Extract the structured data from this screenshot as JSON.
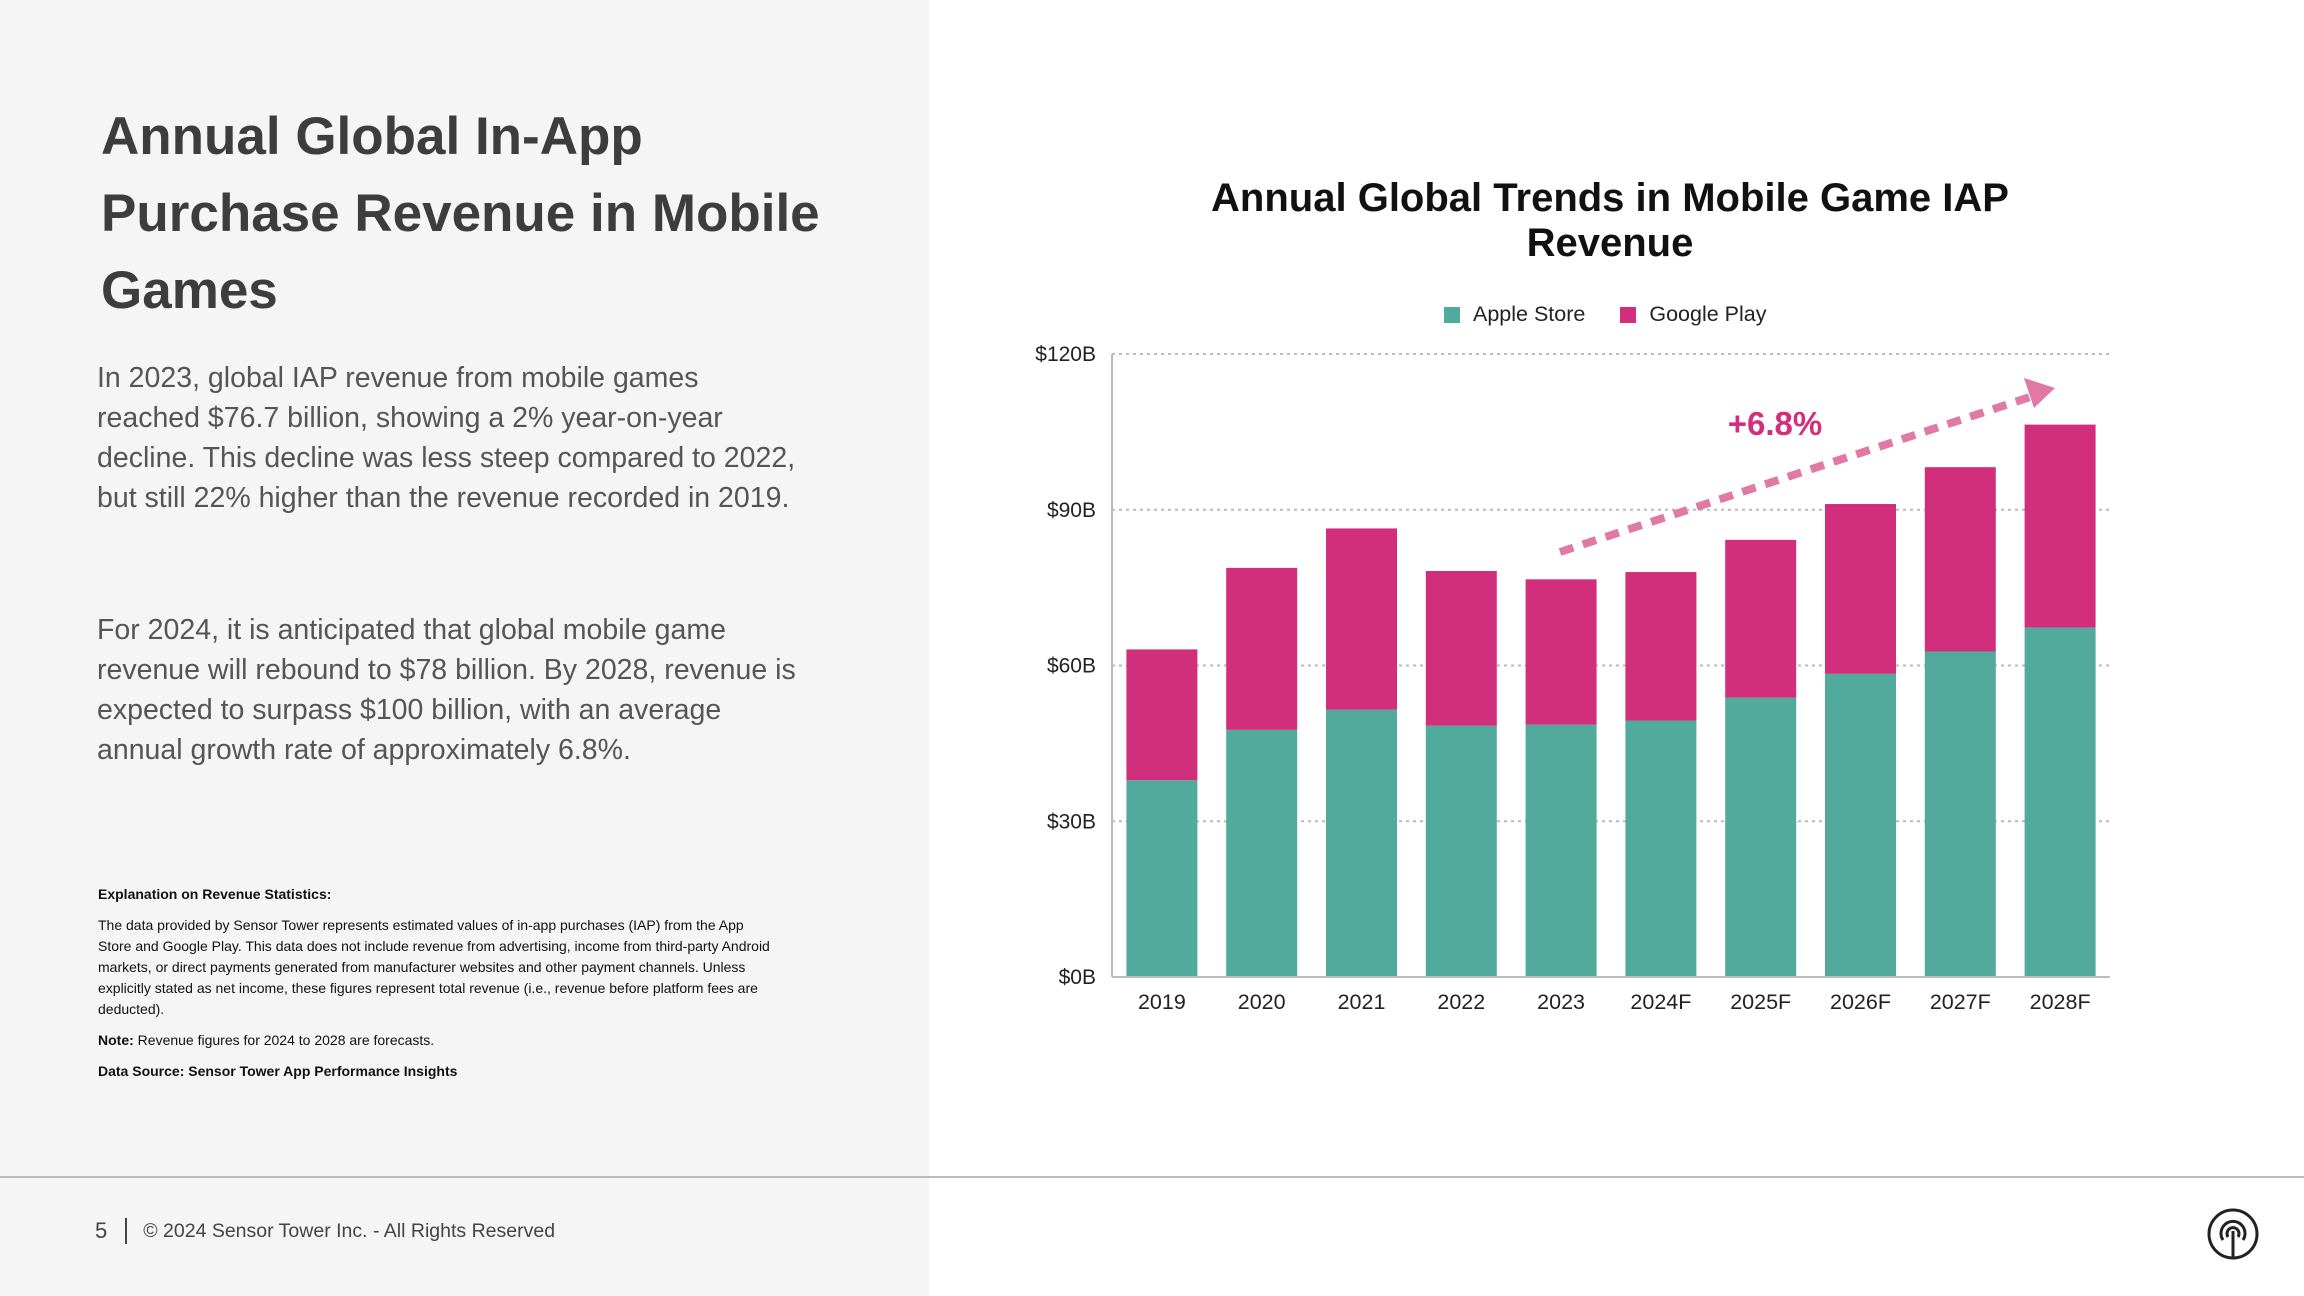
{
  "left": {
    "title": "Annual Global In-App Purchase Revenue in Mobile Games",
    "paragraph1": "In 2023, global IAP revenue  from mobile games reached $76.7 billion, showing a 2% year-on-year decline. This decline was less steep compared to 2022, but still 22% higher than the revenue recorded in 2019.",
    "paragraph2": "For 2024, it is anticipated that global mobile game revenue will rebound to $78 billion. By 2028, revenue is expected to surpass $100 billion, with an average annual growth rate of approximately 6.8%.",
    "notes": {
      "heading": "Explanation on Revenue Statistics:",
      "body": "The data provided by Sensor Tower represents estimated values of in-app purchases (IAP) from the App Store and Google Play. This data does not include revenue from advertising, income from third-party Android markets, or direct payments generated from manufacturer websites and other payment channels. Unless explicitly stated as net income, these figures represent total revenue (i.e., revenue before platform fees are deducted).",
      "note_label": "Note:",
      "note_text": " Revenue figures for 2024 to 2028 are forecasts.",
      "source": "Data Source: Sensor Tower App Performance Insights"
    }
  },
  "footer": {
    "page_number": "5",
    "copyright": "© 2024 Sensor Tower Inc. - All Rights Reserved",
    "logo_icon": "sensor-tower-logo-icon"
  },
  "chart_data": {
    "type": "bar",
    "stacked": true,
    "title": "Annual Global Trends in Mobile Game IAP Revenue",
    "xlabel": "",
    "ylabel": "",
    "ylim": [
      0,
      120
    ],
    "yticks": [
      "$0B",
      "$30B",
      "$60B",
      "$90B",
      "$120B"
    ],
    "ytick_values": [
      0,
      30,
      60,
      90,
      120
    ],
    "grid": true,
    "legend_position": "top",
    "categories": [
      "2019",
      "2020",
      "2021",
      "2022",
      "2023",
      "2024F",
      "2025F",
      "2026F",
      "2027F",
      "2028F"
    ],
    "series": [
      {
        "name": "Apple Store",
        "color": "#52aa9c",
        "values": [
          37.9,
          47.6,
          51.5,
          48.4,
          48.6,
          49.4,
          53.8,
          58.4,
          62.7,
          67.3
        ]
      },
      {
        "name": "Google Play",
        "color": "#d12f7b",
        "values": [
          25.2,
          31.2,
          34.9,
          29.8,
          28.0,
          28.6,
          30.4,
          32.7,
          35.5,
          39.1
        ]
      }
    ],
    "annotation": {
      "text": "+6.8%",
      "color": "#d12f7b",
      "arrow_color": "#e07aa5",
      "from_category": "2023",
      "to_category": "2028F"
    }
  }
}
